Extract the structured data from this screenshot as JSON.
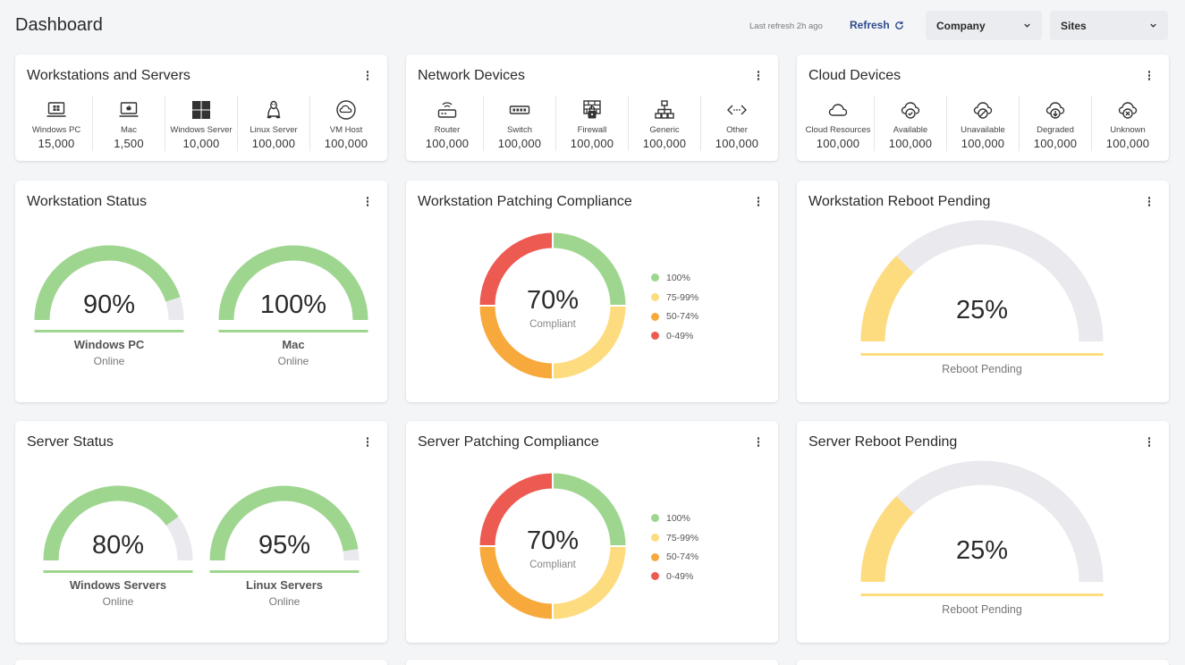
{
  "header": {
    "title": "Dashboard",
    "last_refresh": "Last refresh 2h ago",
    "refresh_label": "Refresh",
    "company_select": "Company",
    "sites_select": "Sites"
  },
  "colors": {
    "green": "#9ed68f",
    "light_gray": "#e9e9ee",
    "yellow": "#fddc80",
    "orange": "#f8a93c",
    "red": "#ec5a52",
    "link": "#2d4b8e"
  },
  "device_cards": [
    {
      "title": "Workstations and Servers",
      "items": [
        {
          "label": "Windows PC",
          "value": "15,000",
          "icon": "laptop-windows-icon"
        },
        {
          "label": "Mac",
          "value": "1,500",
          "icon": "laptop-mac-icon"
        },
        {
          "label": "Windows Server",
          "value": "10,000",
          "icon": "windows-icon"
        },
        {
          "label": "Linux Server",
          "value": "100,000",
          "icon": "linux-icon"
        },
        {
          "label": "VM Host",
          "value": "100,000",
          "icon": "vm-host-icon"
        }
      ]
    },
    {
      "title": "Network Devices",
      "items": [
        {
          "label": "Router",
          "value": "100,000",
          "icon": "router-icon"
        },
        {
          "label": "Switch",
          "value": "100,000",
          "icon": "switch-icon"
        },
        {
          "label": "Firewall",
          "value": "100,000",
          "icon": "firewall-icon"
        },
        {
          "label": "Generic",
          "value": "100,000",
          "icon": "network-generic-icon"
        },
        {
          "label": "Other",
          "value": "100,000",
          "icon": "code-other-icon"
        }
      ]
    },
    {
      "title": "Cloud Devices",
      "items": [
        {
          "label": "Cloud Resources",
          "value": "100,000",
          "icon": "cloud-icon"
        },
        {
          "label": "Available",
          "value": "100,000",
          "icon": "cloud-check-icon"
        },
        {
          "label": "Unavailable",
          "value": "100,000",
          "icon": "cloud-off-icon"
        },
        {
          "label": "Degraded",
          "value": "100,000",
          "icon": "cloud-down-icon"
        },
        {
          "label": "Unknown",
          "value": "100,000",
          "icon": "cloud-unknown-icon"
        }
      ]
    }
  ],
  "chart_data": [
    {
      "type": "gauge",
      "title": "Workstation Status",
      "gauges": [
        {
          "value": 90,
          "label": "90%",
          "name": "Windows PC",
          "sub": "Online"
        },
        {
          "value": 100,
          "label": "100%",
          "name": "Mac",
          "sub": "Online"
        }
      ]
    },
    {
      "type": "pie",
      "title": "Workstation Patching Compliance",
      "center_value": "70%",
      "center_label": "Compliant",
      "categories": [
        "100%",
        "75-99%",
        "50-74%",
        "0-49%"
      ],
      "values": [
        25,
        25,
        25,
        25
      ]
    },
    {
      "type": "gauge",
      "title": "Workstation Reboot Pending",
      "gauges": [
        {
          "value": 25,
          "label": "25%",
          "name": "Reboot Pending",
          "sub": ""
        }
      ]
    },
    {
      "type": "gauge",
      "title": "Server Status",
      "gauges": [
        {
          "value": 80,
          "label": "80%",
          "name": "Windows Servers",
          "sub": "Online"
        },
        {
          "value": 95,
          "label": "95%",
          "name": "Linux Servers",
          "sub": "Online"
        }
      ]
    },
    {
      "type": "pie",
      "title": "Server Patching Compliance",
      "center_value": "70%",
      "center_label": "Compliant",
      "categories": [
        "100%",
        "75-99%",
        "50-74%",
        "0-49%"
      ],
      "values": [
        25,
        25,
        25,
        25
      ]
    },
    {
      "type": "gauge",
      "title": "Server Reboot Pending",
      "gauges": [
        {
          "value": 25,
          "label": "25%",
          "name": "Reboot Pending",
          "sub": ""
        }
      ]
    }
  ]
}
